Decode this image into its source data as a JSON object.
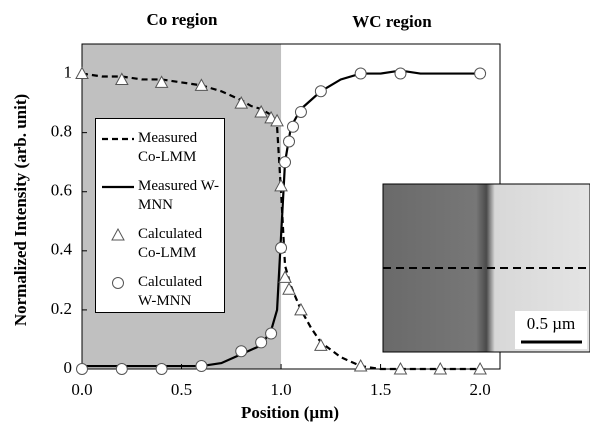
{
  "chart_data": {
    "type": "line",
    "title_left": "Co region",
    "title_right": "WC region",
    "xlabel": "Position (µm)",
    "ylabel": "Normalized Intensity (arb. unit)",
    "xlim": [
      0,
      2.1
    ],
    "ylim": [
      0,
      1.1
    ],
    "xticks": [
      {
        "value": 0,
        "label": "0.0"
      },
      0.5,
      {
        "value": 1,
        "label": "1.0"
      },
      1.5,
      {
        "value": 2,
        "label": "2.0"
      }
    ],
    "yticks": [
      0,
      0.2,
      0.4,
      0.6,
      0.8,
      1
    ],
    "shaded_xrange": [
      0,
      1.0
    ],
    "shade_color": "#c0c0c0",
    "legend": "left",
    "series": [
      {
        "name": "Measured Co-LMM",
        "color": "#000000",
        "style": "dashed",
        "x": [
          0,
          0.1,
          0.2,
          0.3,
          0.4,
          0.5,
          0.6,
          0.7,
          0.8,
          0.85,
          0.9,
          0.95,
          0.98,
          1.0,
          1.02,
          1.05,
          1.1,
          1.15,
          1.2,
          1.3,
          1.4,
          1.5,
          1.6,
          1.7,
          1.8,
          1.9,
          2.0
        ],
        "values": [
          1.0,
          0.99,
          0.99,
          0.98,
          0.98,
          0.97,
          0.96,
          0.94,
          0.91,
          0.89,
          0.88,
          0.86,
          0.82,
          0.6,
          0.35,
          0.28,
          0.2,
          0.14,
          0.09,
          0.04,
          0.01,
          0.0,
          0.0,
          0.0,
          0.0,
          0.0,
          0.0
        ]
      },
      {
        "name": "Measured W-MNN",
        "color": "#000000",
        "style": "solid",
        "x": [
          0,
          0.1,
          0.2,
          0.3,
          0.4,
          0.5,
          0.6,
          0.7,
          0.8,
          0.9,
          0.95,
          0.98,
          1.0,
          1.02,
          1.05,
          1.1,
          1.2,
          1.3,
          1.4,
          1.5,
          1.6,
          1.7,
          1.8,
          1.9,
          2.0
        ],
        "values": [
          0.01,
          0.01,
          0.01,
          0.01,
          0.01,
          0.01,
          0.01,
          0.02,
          0.05,
          0.08,
          0.13,
          0.2,
          0.45,
          0.7,
          0.82,
          0.88,
          0.94,
          0.98,
          1.0,
          1.0,
          1.01,
          1.0,
          1.0,
          1.0,
          1.0
        ]
      },
      {
        "name": "Calculated Co-LMM",
        "color": "#000000",
        "marker": "triangle",
        "x": [
          0,
          0.2,
          0.4,
          0.6,
          0.8,
          0.9,
          0.95,
          0.98,
          1.0,
          1.02,
          1.04,
          1.1,
          1.2,
          1.4,
          1.6,
          1.8,
          2.0
        ],
        "values": [
          1.0,
          0.98,
          0.97,
          0.96,
          0.9,
          0.87,
          0.85,
          0.84,
          0.62,
          0.31,
          0.27,
          0.2,
          0.08,
          0.01,
          0.0,
          0.0,
          0.0
        ]
      },
      {
        "name": "Calculated W-MNN",
        "color": "#000000",
        "marker": "circle",
        "x": [
          0,
          0.2,
          0.4,
          0.6,
          0.8,
          0.9,
          0.95,
          1.0,
          1.02,
          1.04,
          1.06,
          1.1,
          1.2,
          1.4,
          1.6,
          2.0
        ],
        "values": [
          0,
          0,
          0,
          0.01,
          0.06,
          0.09,
          0.12,
          0.41,
          0.7,
          0.77,
          0.82,
          0.87,
          0.94,
          1.0,
          1.0,
          1.0
        ]
      }
    ],
    "inset_scale_label": "0.5 µm"
  }
}
